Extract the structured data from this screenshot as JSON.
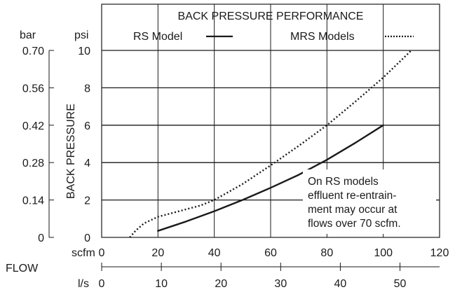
{
  "chart_data": {
    "type": "line",
    "title": "BACK PRESSURE PERFORMANCE",
    "ylabel": "BACK PRESSURE",
    "xlabel": "FLOW",
    "left_axis_unit": "bar",
    "right_axis_unit": "psi",
    "x_primary_unit": "scfm",
    "x_secondary_unit": "l/s",
    "xlim": [
      0,
      120
    ],
    "ylim": [
      0,
      10
    ],
    "x_ticks": [
      "0",
      "20",
      "40",
      "60",
      "80",
      "100",
      "120"
    ],
    "psi_ticks": [
      "0",
      "2",
      "4",
      "6",
      "8",
      "10"
    ],
    "bar_ticks": [
      "0",
      "0.14",
      "0.28",
      "0.42",
      "0.56",
      "0.70"
    ],
    "ls_ticks": [
      "0",
      "10",
      "20",
      "30",
      "40",
      "50"
    ],
    "grid": true,
    "legend_placement": "top",
    "series": [
      {
        "name": "RS Model",
        "style": "solid",
        "color": "#1a1a1a",
        "x": [
          20,
          30,
          40,
          50,
          60,
          70,
          80,
          90,
          100
        ],
        "y": [
          0.35,
          0.85,
          1.4,
          2.0,
          2.65,
          3.35,
          4.15,
          5.05,
          6.0
        ]
      },
      {
        "name": "MRS Models",
        "style": "dotted",
        "color": "#1a1a1a",
        "x": [
          10,
          12,
          15,
          20,
          25,
          30,
          35,
          40,
          50,
          60,
          70,
          80,
          90,
          100,
          110
        ],
        "y": [
          0,
          0.35,
          0.75,
          1.1,
          1.3,
          1.5,
          1.7,
          2.0,
          2.85,
          3.85,
          4.9,
          6.0,
          7.25,
          8.55,
          10.0
        ]
      }
    ],
    "annotation": [
      "On RS models",
      "effluent re-entrain-",
      "ment may occur at",
      "flows over 70 scfm."
    ]
  }
}
